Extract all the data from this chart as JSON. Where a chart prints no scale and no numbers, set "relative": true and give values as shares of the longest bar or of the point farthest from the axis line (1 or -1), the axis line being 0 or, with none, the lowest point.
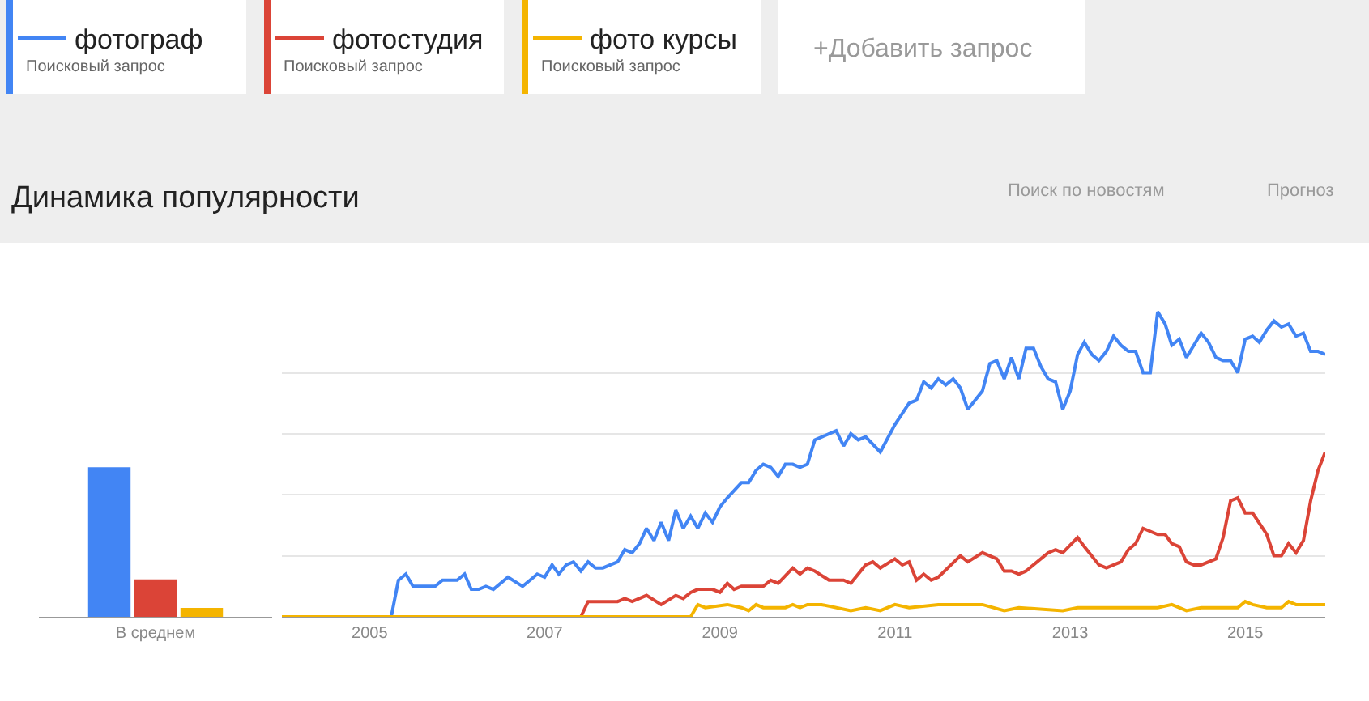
{
  "chart_data": [
    {
      "type": "bar",
      "title": "Динамика популярности",
      "relative": true,
      "categories": [
        "В среднем"
      ],
      "series": [
        {
          "color": "#4285f4",
          "values": [
            1
          ]
        },
        {
          "color": "#db4437",
          "values": [
            0.25
          ]
        },
        {
          "color": "#f4b400",
          "values": [
            0.06
          ]
        }
      ]
    },
    {
      "type": "line",
      "relative": true,
      "grid": "y",
      "legend": "top left",
      "marker": "none",
      "line_style": "solid",
      "xlim": [
        "2004-01",
        "2015-12"
      ],
      "xticks": [
        {
          "value": "2005-01",
          "label": "2005"
        },
        {
          "value": "2007-01",
          "label": "2007"
        },
        {
          "value": "2009-01",
          "label": "2009"
        },
        {
          "value": "2011-01",
          "label": "2011"
        },
        {
          "value": "2013-01",
          "label": "2013"
        },
        {
          "value": "2015-01",
          "label": "2015"
        }
      ],
      "annotations": [
        "Поисковый запрос",
        "Поисковый запрос",
        "Поисковый запрос",
        "+Добавить запрос",
        "Поиск по новостям",
        "Прогноз"
      ],
      "series": [
        {
          "name": "фотограф",
          "color": "#4285f4",
          "x": [
            "2004-01",
            "2005-04",
            "2005-05",
            "2005-06",
            "2005-07",
            "2005-10",
            "2005-11",
            "2006-01",
            "2006-02",
            "2006-03",
            "2006-04",
            "2006-05",
            "2006-06",
            "2006-08",
            "2006-10",
            "2006-11",
            "2006-12",
            "2007-01",
            "2007-02",
            "2007-03",
            "2007-04",
            "2007-05",
            "2007-06",
            "2007-07",
            "2007-08",
            "2007-09",
            "2007-11",
            "2007-12",
            "2008-01",
            "2008-02",
            "2008-03",
            "2008-04",
            "2008-05",
            "2008-06",
            "2008-07",
            "2008-08",
            "2008-09",
            "2008-10",
            "2008-11",
            "2008-12",
            "2009-01",
            "2009-02",
            "2009-04",
            "2009-05",
            "2009-06",
            "2009-07",
            "2009-08",
            "2009-09",
            "2009-10",
            "2009-11",
            "2009-12",
            "2010-01",
            "2010-02",
            "2010-05",
            "2010-06",
            "2010-07",
            "2010-08",
            "2010-09",
            "2010-11",
            "2011-01",
            "2011-03",
            "2011-04",
            "2011-05",
            "2011-06",
            "2011-07",
            "2011-08",
            "2011-09",
            "2011-10",
            "2011-11",
            "2012-01",
            "2012-02",
            "2012-03",
            "2012-04",
            "2012-05",
            "2012-06",
            "2012-07",
            "2012-08",
            "2012-09",
            "2012-10",
            "2012-11",
            "2012-12",
            "2013-01",
            "2013-02",
            "2013-03",
            "2013-04",
            "2013-05",
            "2013-06",
            "2013-07",
            "2013-08",
            "2013-09",
            "2013-10",
            "2013-11",
            "2013-12",
            "2014-01",
            "2014-02",
            "2014-03",
            "2014-04",
            "2014-05",
            "2014-06",
            "2014-07",
            "2014-08",
            "2014-09",
            "2014-10",
            "2014-11",
            "2014-12",
            "2015-01",
            "2015-02",
            "2015-03",
            "2015-04",
            "2015-05",
            "2015-06",
            "2015-07",
            "2015-08",
            "2015-09",
            "2015-10",
            "2015-11",
            "2015-12"
          ],
          "values": [
            0,
            0,
            0.12,
            0.14,
            0.1,
            0.1,
            0.12,
            0.12,
            0.14,
            0.09,
            0.09,
            0.1,
            0.09,
            0.13,
            0.1,
            0.12,
            0.14,
            0.13,
            0.17,
            0.14,
            0.17,
            0.18,
            0.15,
            0.18,
            0.16,
            0.16,
            0.18,
            0.22,
            0.21,
            0.24,
            0.29,
            0.25,
            0.31,
            0.25,
            0.35,
            0.29,
            0.33,
            0.29,
            0.34,
            0.31,
            0.36,
            0.39,
            0.44,
            0.44,
            0.48,
            0.5,
            0.49,
            0.46,
            0.5,
            0.5,
            0.49,
            0.5,
            0.58,
            0.61,
            0.56,
            0.6,
            0.58,
            0.59,
            0.54,
            0.63,
            0.7,
            0.71,
            0.77,
            0.75,
            0.78,
            0.76,
            0.78,
            0.75,
            0.68,
            0.74,
            0.83,
            0.84,
            0.78,
            0.85,
            0.78,
            0.88,
            0.88,
            0.82,
            0.78,
            0.77,
            0.68,
            0.74,
            0.86,
            0.9,
            0.86,
            0.84,
            0.87,
            0.92,
            0.89,
            0.87,
            0.87,
            0.8,
            0.8,
            1.0,
            0.96,
            0.89,
            0.91,
            0.85,
            0.89,
            0.93,
            0.9,
            0.85,
            0.84,
            0.84,
            0.8,
            0.91,
            0.92,
            0.9,
            0.94,
            0.97,
            0.95,
            0.96,
            0.92,
            0.93,
            0.87,
            0.87,
            0.86
          ]
        },
        {
          "name": "фотостудия",
          "color": "#db4437",
          "x": [
            "2004-01",
            "2007-06",
            "2007-07",
            "2007-11",
            "2007-12",
            "2008-01",
            "2008-03",
            "2008-05",
            "2008-07",
            "2008-08",
            "2008-09",
            "2008-10",
            "2008-12",
            "2009-01",
            "2009-02",
            "2009-03",
            "2009-04",
            "2009-07",
            "2009-08",
            "2009-09",
            "2009-11",
            "2009-12",
            "2010-01",
            "2010-02",
            "2010-04",
            "2010-06",
            "2010-07",
            "2010-09",
            "2010-10",
            "2010-11",
            "2011-01",
            "2011-02",
            "2011-03",
            "2011-04",
            "2011-05",
            "2011-06",
            "2011-07",
            "2011-10",
            "2011-11",
            "2012-01",
            "2012-03",
            "2012-04",
            "2012-05",
            "2012-06",
            "2012-07",
            "2012-10",
            "2012-11",
            "2012-12",
            "2013-02",
            "2013-03",
            "2013-05",
            "2013-06",
            "2013-08",
            "2013-09",
            "2013-10",
            "2013-11",
            "2014-01",
            "2014-02",
            "2014-03",
            "2014-04",
            "2014-05",
            "2014-06",
            "2014-07",
            "2014-09",
            "2014-10",
            "2014-11",
            "2014-12",
            "2015-01",
            "2015-02",
            "2015-04",
            "2015-05",
            "2015-06",
            "2015-07",
            "2015-08",
            "2015-09",
            "2015-10",
            "2015-11",
            "2015-12"
          ],
          "values": [
            0,
            0,
            0.05,
            0.05,
            0.06,
            0.05,
            0.07,
            0.04,
            0.07,
            0.06,
            0.08,
            0.09,
            0.09,
            0.08,
            0.11,
            0.09,
            0.1,
            0.1,
            0.12,
            0.11,
            0.16,
            0.14,
            0.16,
            0.15,
            0.12,
            0.12,
            0.11,
            0.17,
            0.18,
            0.16,
            0.19,
            0.17,
            0.18,
            0.12,
            0.14,
            0.12,
            0.13,
            0.2,
            0.18,
            0.21,
            0.19,
            0.15,
            0.15,
            0.14,
            0.15,
            0.21,
            0.22,
            0.21,
            0.26,
            0.23,
            0.17,
            0.16,
            0.18,
            0.22,
            0.24,
            0.29,
            0.27,
            0.27,
            0.24,
            0.23,
            0.18,
            0.17,
            0.17,
            0.19,
            0.26,
            0.38,
            0.39,
            0.34,
            0.34,
            0.27,
            0.2,
            0.2,
            0.24,
            0.21,
            0.25,
            0.38,
            0.48,
            0.54
          ]
        },
        {
          "name": "фото курсы",
          "color": "#f4b400",
          "x": [
            "2004-01",
            "2008-09",
            "2008-10",
            "2008-11",
            "2009-02",
            "2009-04",
            "2009-05",
            "2009-06",
            "2009-07",
            "2009-10",
            "2009-11",
            "2009-12",
            "2010-01",
            "2010-03",
            "2010-07",
            "2010-09",
            "2010-11",
            "2011-01",
            "2011-03",
            "2011-07",
            "2011-09",
            "2012-01",
            "2012-04",
            "2012-06",
            "2012-12",
            "2013-02",
            "2014-01",
            "2014-03",
            "2014-05",
            "2014-07",
            "2014-12",
            "2015-01",
            "2015-02",
            "2015-04",
            "2015-06",
            "2015-07",
            "2015-08",
            "2015-12"
          ],
          "values": [
            0,
            0,
            0.04,
            0.03,
            0.04,
            0.03,
            0.02,
            0.04,
            0.03,
            0.03,
            0.04,
            0.03,
            0.04,
            0.04,
            0.02,
            0.03,
            0.02,
            0.04,
            0.03,
            0.04,
            0.04,
            0.04,
            0.02,
            0.03,
            0.02,
            0.03,
            0.03,
            0.04,
            0.02,
            0.03,
            0.03,
            0.05,
            0.04,
            0.03,
            0.03,
            0.05,
            0.04,
            0.04
          ]
        }
      ]
    }
  ]
}
